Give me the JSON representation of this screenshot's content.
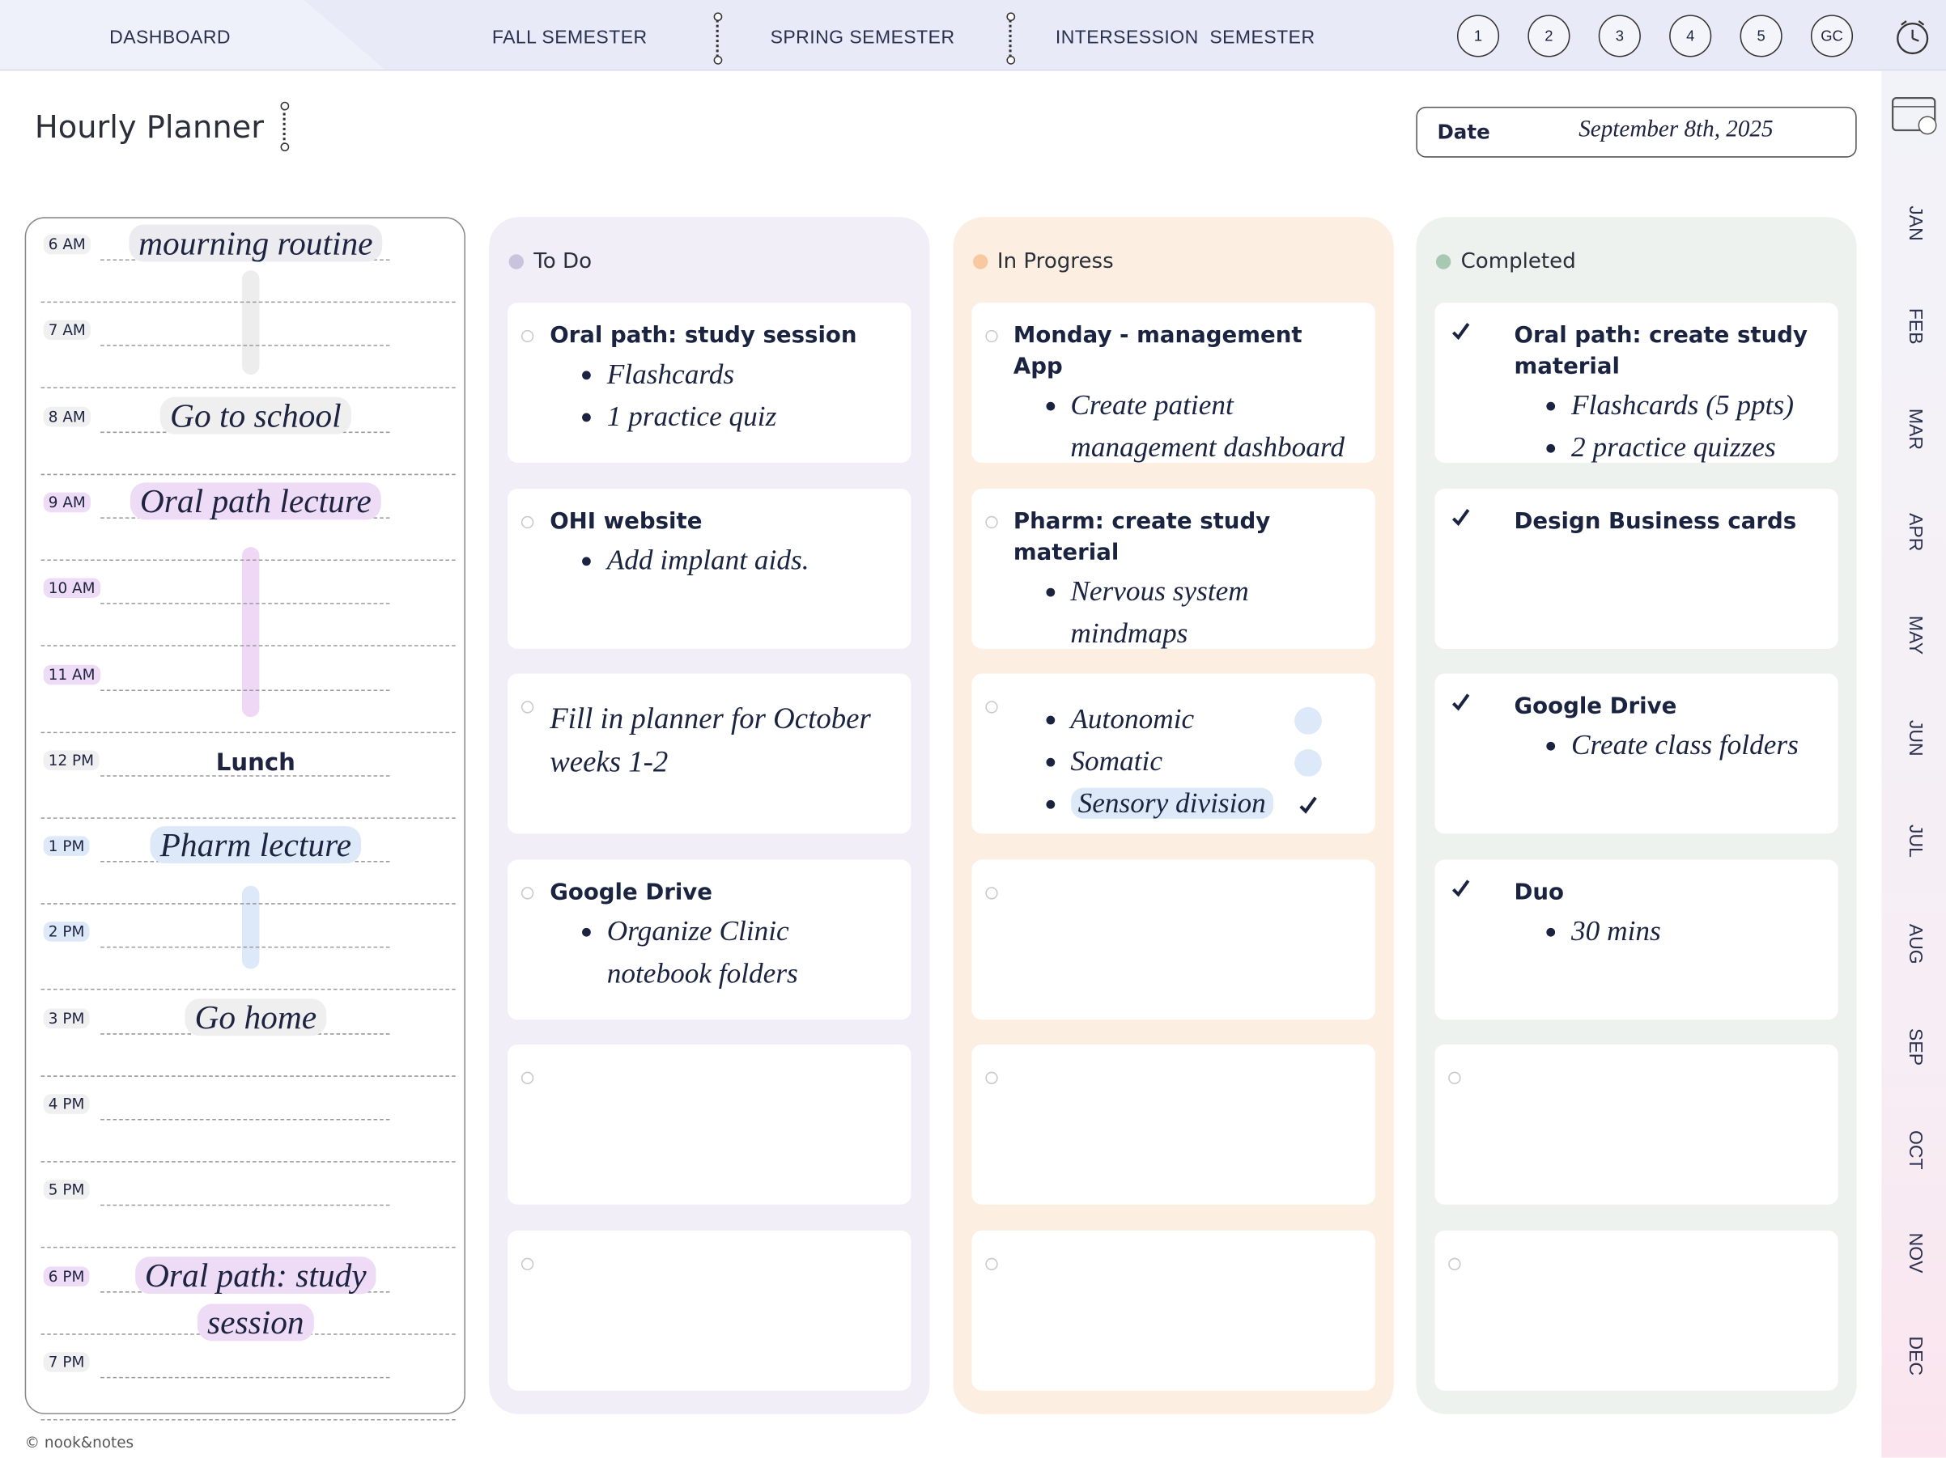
{
  "nav": {
    "tabs": [
      "DASHBOARD",
      "FALL SEMESTER",
      "SPRING SEMESTER",
      "INTERSESSION  SEMESTER"
    ],
    "buttons": [
      "1",
      "2",
      "3",
      "4",
      "5",
      "GC"
    ]
  },
  "header": {
    "title": "Hourly Planner",
    "date_label": "Date",
    "date": "September 8th, 2025"
  },
  "schedule": {
    "slots": [
      {
        "hour": "6 AM",
        "entry": "mourning routine",
        "highlight": "#ececf0"
      },
      {
        "hour": "7 AM"
      },
      {
        "hour": "8 AM",
        "entry": "Go to school",
        "highlight": "#efefef"
      },
      {
        "hour": "9 AM",
        "entry": "Oral path lecture",
        "highlight": "#eedcf7"
      },
      {
        "hour": "10 AM"
      },
      {
        "hour": "11 AM"
      },
      {
        "hour": "12 PM",
        "entry": "Lunch"
      },
      {
        "hour": "1 PM",
        "entry": "Pharm lecture",
        "highlight": "#dde9f8"
      },
      {
        "hour": "2 PM"
      },
      {
        "hour": "3 PM",
        "entry": "Go home",
        "highlight": "#efefef"
      },
      {
        "hour": "4 PM"
      },
      {
        "hour": "5 PM"
      },
      {
        "hour": "6 PM",
        "entry": "Oral path: study session",
        "highlight": "#eedcf7"
      },
      {
        "hour": "7 PM"
      }
    ]
  },
  "board": {
    "columns": [
      {
        "title": "To Do",
        "color": "#f1eef8",
        "dot": "#c9c3dd",
        "cards": [
          {
            "title": "Oral path: study session",
            "bullets": [
              "Flashcards",
              "1 practice quiz"
            ]
          },
          {
            "title": "OHI website",
            "bullets": [
              "Add implant aids."
            ]
          },
          {
            "note": "Fill in planner for October weeks 1-2"
          },
          {
            "title": "Google Drive",
            "bullets": [
              "Organize Clinic notebook folders"
            ]
          },
          {},
          {}
        ]
      },
      {
        "title": "In Progress",
        "color": "#fcefe2",
        "dot": "#f8c9a0",
        "cards": [
          {
            "title": "Monday - management App",
            "bullets": [
              "Create patient management dashboard"
            ]
          },
          {
            "title": "Pharm: create study material",
            "bullets": [
              "Nervous system mindmaps"
            ]
          },
          {
            "bullets": [
              "Autonomic",
              "Somatic",
              "Sensory division"
            ],
            "checked": [
              false,
              false,
              true
            ]
          },
          {},
          {},
          {}
        ]
      },
      {
        "title": "Completed",
        "color": "#eef2ef",
        "dot": "#a9c8b4",
        "cards": [
          {
            "title": "Oral path: create study material",
            "bullets": [
              "Flashcards (5 ppts)",
              "2 practice quizzes"
            ],
            "done": true
          },
          {
            "title": "Design Business cards",
            "done": true
          },
          {
            "title": "Google Drive",
            "bullets": [
              "Create class folders"
            ],
            "done": true
          },
          {
            "title": "Duo",
            "bullets": [
              "30 mins"
            ],
            "done": true
          },
          {},
          {}
        ]
      }
    ]
  },
  "months": [
    "JAN",
    "FEB",
    "MAR",
    "APR",
    "MAY",
    "JUN",
    "JUL",
    "AUG",
    "SEP",
    "OCT",
    "NOV",
    "DEC"
  ],
  "footer": "© nook&notes"
}
